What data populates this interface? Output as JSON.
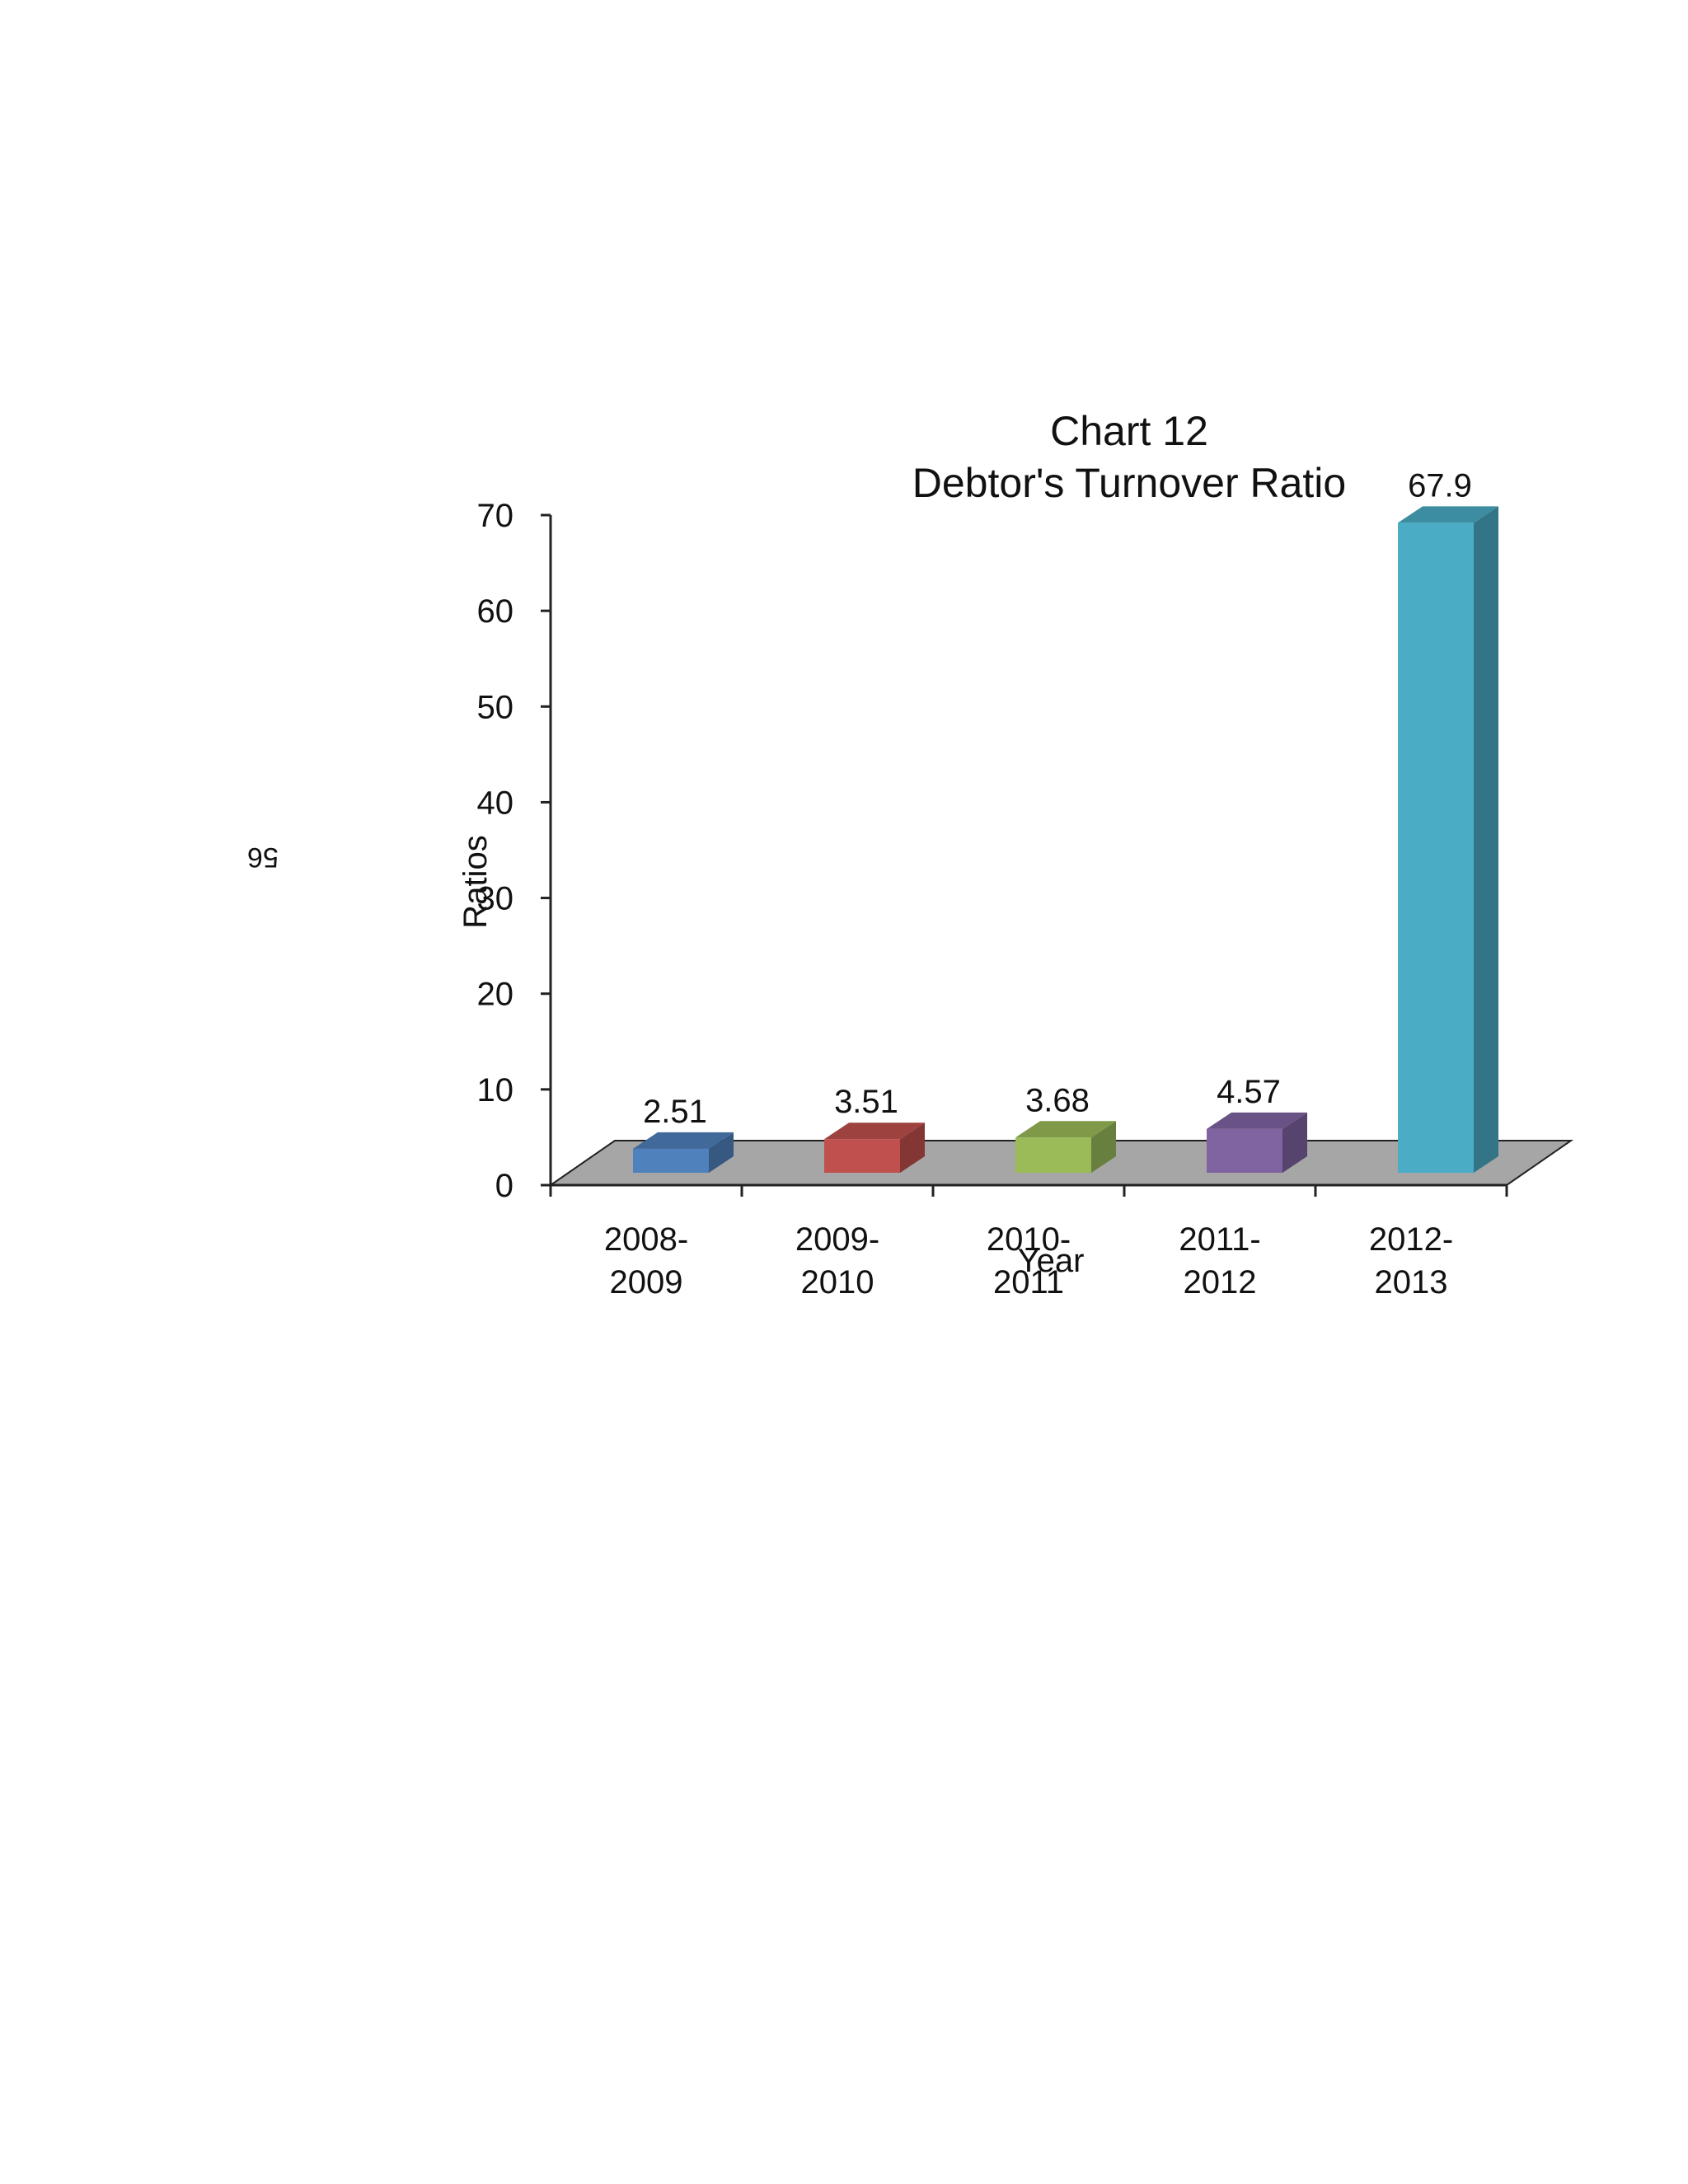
{
  "page": {
    "page_number": "56"
  },
  "chart_data": {
    "type": "bar",
    "title_line1": "Chart 12",
    "title_line2": "Debtor's Turnover Ratio",
    "xlabel": "Year",
    "ylabel": "Ratios",
    "ylim": [
      0,
      70
    ],
    "yticks": [
      "0",
      "10",
      "20",
      "30",
      "40",
      "50",
      "60",
      "70"
    ],
    "categories": [
      [
        "2008-",
        "2009"
      ],
      [
        "2009-",
        "2010"
      ],
      [
        "2010-",
        "2011"
      ],
      [
        "2011-",
        "2012"
      ],
      [
        "2012-",
        "2013"
      ]
    ],
    "values": [
      2.51,
      3.51,
      3.68,
      4.57,
      67.9
    ],
    "data_labels": [
      "2.51",
      "3.51",
      "3.68",
      "4.57",
      "67.9"
    ],
    "bar_colors": [
      "#4f81bd",
      "#c0504d",
      "#9bbb59",
      "#8064a2",
      "#4bacc6"
    ],
    "floor_color": "#a6a6a6",
    "grid": false,
    "legend": "none"
  }
}
